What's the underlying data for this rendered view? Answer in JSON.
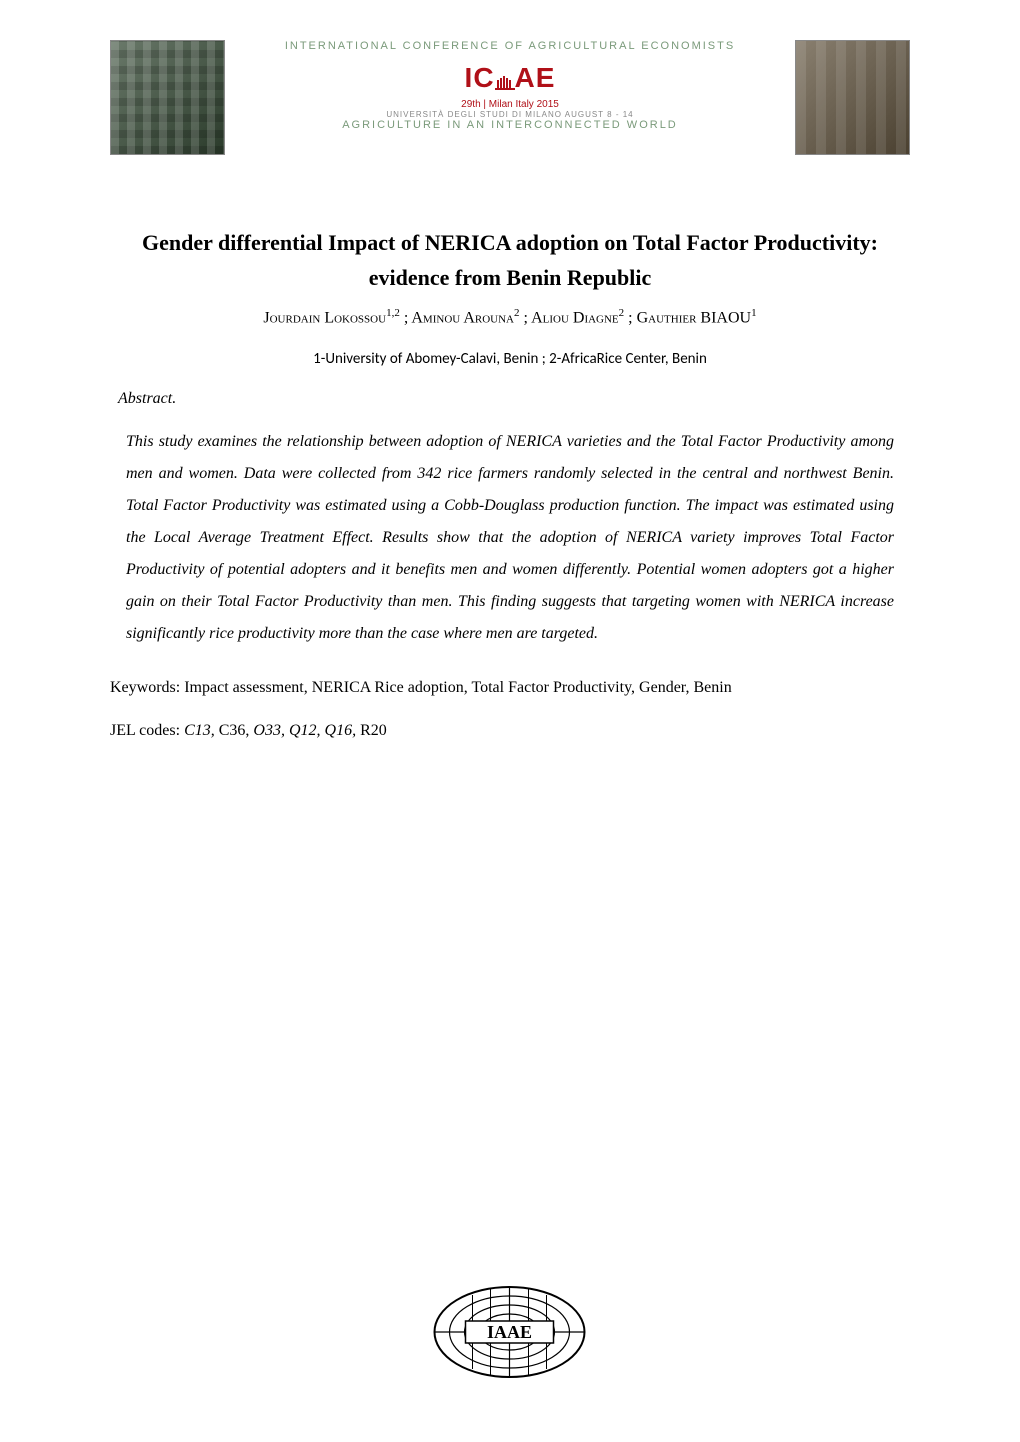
{
  "banner": {
    "top_line": "INTERNATIONAL CONFERENCE OF AGRICULTURAL ECONOMISTS",
    "logo_text": "ICAE",
    "logo_color": "#b01018",
    "sub_line1": "29th | Milan Italy 2015",
    "sub_line2": "UNIVERSITÀ DEGLI STUDI DI MILANO AUGUST 8 - 14",
    "sub_line3": "AGRICULTURE IN AN INTERCONNECTED WORLD",
    "accent_color": "#7a9a7a"
  },
  "title": "Gender differential Impact of NERICA adoption on Total Factor Productivity: evidence from Benin Republic",
  "title_fontsize": 22,
  "authors_line": {
    "a1_name": "Jourdain Lokossou",
    "a1_sup": "1,2",
    "a2_name": "Aminou Arouna",
    "a2_sup": "2",
    "a3_name": "Aliou Diagne",
    "a3_sup": "2",
    "a4_name": "Gauthier BIAOU",
    "a4_sup": "1",
    "separator": " ; "
  },
  "affiliations": "1-University of Abomey-Calavi, Benin    ;   2-AfricaRice Center, Benin",
  "abstract": {
    "label": "Abstract.",
    "body": "This study examines the relationship between adoption of NERICA varieties and the Total Factor Productivity among men and women. Data were collected from 342 rice farmers randomly selected in the central and northwest Benin. Total Factor Productivity was estimated using a Cobb-Douglass production function. The impact was estimated using the Local Average Treatment Effect. Results show that the adoption of NERICA variety improves Total Factor Productivity of potential adopters and it benefits men and women differently. Potential women adopters got a higher gain on their Total Factor Productivity than men. This finding suggests that targeting women with NERICA increase significantly rice productivity more than the case where men are targeted."
  },
  "keywords": {
    "label": "Keywords: ",
    "text": "Impact assessment, NERICA Rice adoption, Total Factor Productivity, Gender, Benin"
  },
  "jel": {
    "label": "JEL codes: ",
    "codes_html_parts": [
      {
        "text": "C13,",
        "italic": true
      },
      {
        "text": " C36, ",
        "italic": false
      },
      {
        "text": "O33, Q12, Q16,",
        "italic": true
      },
      {
        "text": " R20",
        "italic": false
      }
    ]
  },
  "footer_logo": {
    "label": "IAAE",
    "stroke_color": "#000000",
    "fill_color": "#ffffff"
  },
  "page_bg": "#ffffff",
  "text_color": "#000000"
}
